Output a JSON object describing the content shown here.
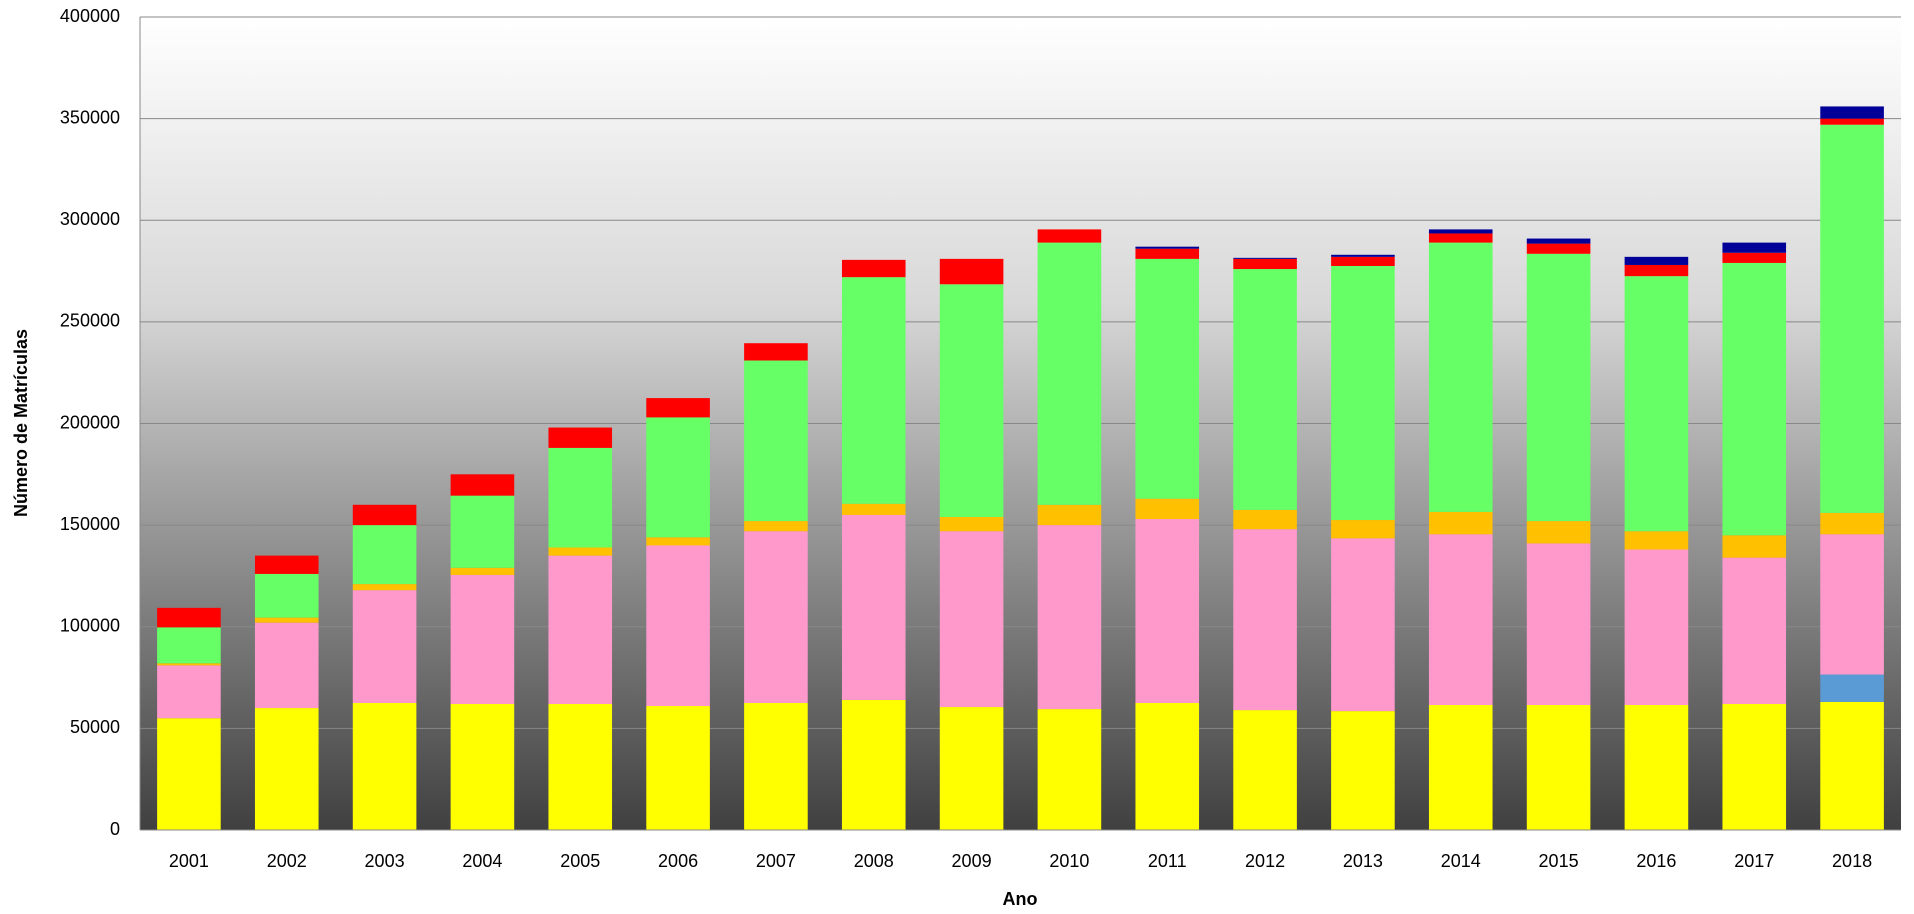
{
  "chart_data": {
    "type": "stacked_bar",
    "x_label": "Ano",
    "y_label": "Número de Matrículas",
    "categories": [
      "2001",
      "2002",
      "2003",
      "2004",
      "2005",
      "2006",
      "2007",
      "2008",
      "2009",
      "2010",
      "2011",
      "2012",
      "2013",
      "2014",
      "2015",
      "2016",
      "2017",
      "2018"
    ],
    "series": [
      {
        "color": "#ffff00",
        "values": [
          55000,
          60000,
          62500,
          62000,
          62000,
          61000,
          62500,
          64000,
          60500,
          59500,
          62500,
          59000,
          58500,
          61500,
          61500,
          61500,
          62000,
          63000
        ]
      },
      {
        "color": "#5b9bd5",
        "values": [
          0,
          0,
          0,
          0,
          0,
          0,
          0,
          0,
          0,
          0,
          0,
          0,
          0,
          0,
          0,
          0,
          0,
          13500
        ]
      },
      {
        "color": "#ff99cc",
        "values": [
          26000,
          42000,
          55500,
          63500,
          73000,
          79000,
          84500,
          91000,
          86500,
          90500,
          90500,
          89000,
          85000,
          84000,
          79500,
          76500,
          72000,
          69000
        ]
      },
      {
        "color": "#ffc000",
        "values": [
          1000,
          2500,
          3000,
          3500,
          4000,
          4000,
          5000,
          5500,
          7000,
          10000,
          10000,
          9500,
          9000,
          11000,
          11000,
          9000,
          11000,
          10500
        ]
      },
      {
        "color": "#66ff66",
        "values": [
          17700,
          21500,
          29000,
          35500,
          49000,
          59000,
          79000,
          111500,
          114500,
          129000,
          118000,
          118500,
          125000,
          132500,
          131500,
          125500,
          134000,
          191000
        ]
      },
      {
        "color": "#ff0000",
        "values": [
          9600,
          9000,
          10000,
          10500,
          10000,
          9500,
          8500,
          8500,
          12500,
          6500,
          5000,
          5000,
          4500,
          4500,
          5000,
          5500,
          5000,
          3000
        ]
      },
      {
        "color": "#000099",
        "values": [
          0,
          0,
          0,
          0,
          0,
          0,
          0,
          0,
          0,
          0,
          1000,
          500,
          1000,
          2000,
          2500,
          4000,
          5000,
          6000
        ]
      }
    ],
    "ylim": [
      0,
      400000
    ],
    "yticks": [
      0,
      50000,
      100000,
      150000,
      200000,
      250000,
      300000,
      350000,
      400000
    ],
    "grid": true
  }
}
